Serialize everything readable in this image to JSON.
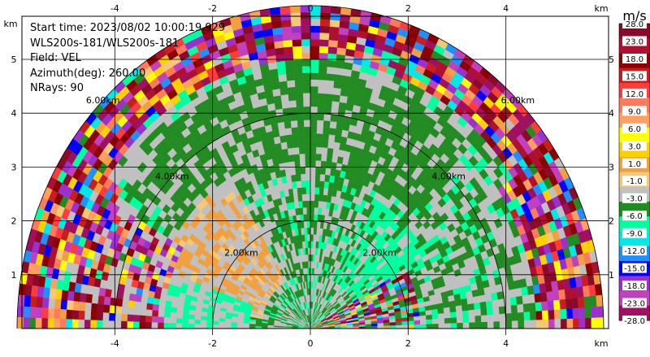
{
  "info": {
    "start_time": "Start time: 2023/08/02 10:00:19.929",
    "radar": "WLS200s-181/WLS200s-181",
    "field": "Field: VEL",
    "azimuth": "Azimuth(deg): 260.00",
    "nrays": "NRays: 90"
  },
  "colorbar": {
    "unit": "m/s",
    "labels": [
      "28.0",
      "23.0",
      "18.0",
      "15.0",
      "12.0",
      "9.0",
      "6.0",
      "3.0",
      "1.0",
      "-1.0",
      "-3.0",
      "-6.0",
      "-9.0",
      "-12.0",
      "-15.0",
      "-18.0",
      "-23.0",
      "-28.0"
    ],
    "colors": [
      "#8b0a2a",
      "#b01030",
      "#8b0000",
      "#c81e1e",
      "#ff3c3c",
      "#ff7a5a",
      "#ffa060",
      "#ffff00",
      "#ffd000",
      "#f0a040",
      "#f5c878",
      "#c0c0c0",
      "#228b22",
      "#00ffa0",
      "#00e8e8",
      "#1e90ff",
      "#0000ff",
      "#9b30d0",
      "#c040c0",
      "#a01060"
    ]
  },
  "chart_data": {
    "type": "heatmap",
    "title": "",
    "xlabel": "km",
    "ylabel": "km",
    "xlim": [
      -5.9,
      6.1
    ],
    "ylim": [
      0,
      5.8
    ],
    "x_ticks": [
      -4,
      -2,
      0,
      2,
      4
    ],
    "y_ticks": [
      1,
      2,
      3,
      4,
      5
    ],
    "range_rings_km": [
      2,
      4,
      6
    ],
    "range_ring_labels": [
      "2.00km",
      "4.00km",
      "6.00km"
    ],
    "max_range_km": 6.0,
    "field": "VEL",
    "units": "m/s",
    "vmin": -28.0,
    "vmax": 28.0,
    "grid": true
  }
}
